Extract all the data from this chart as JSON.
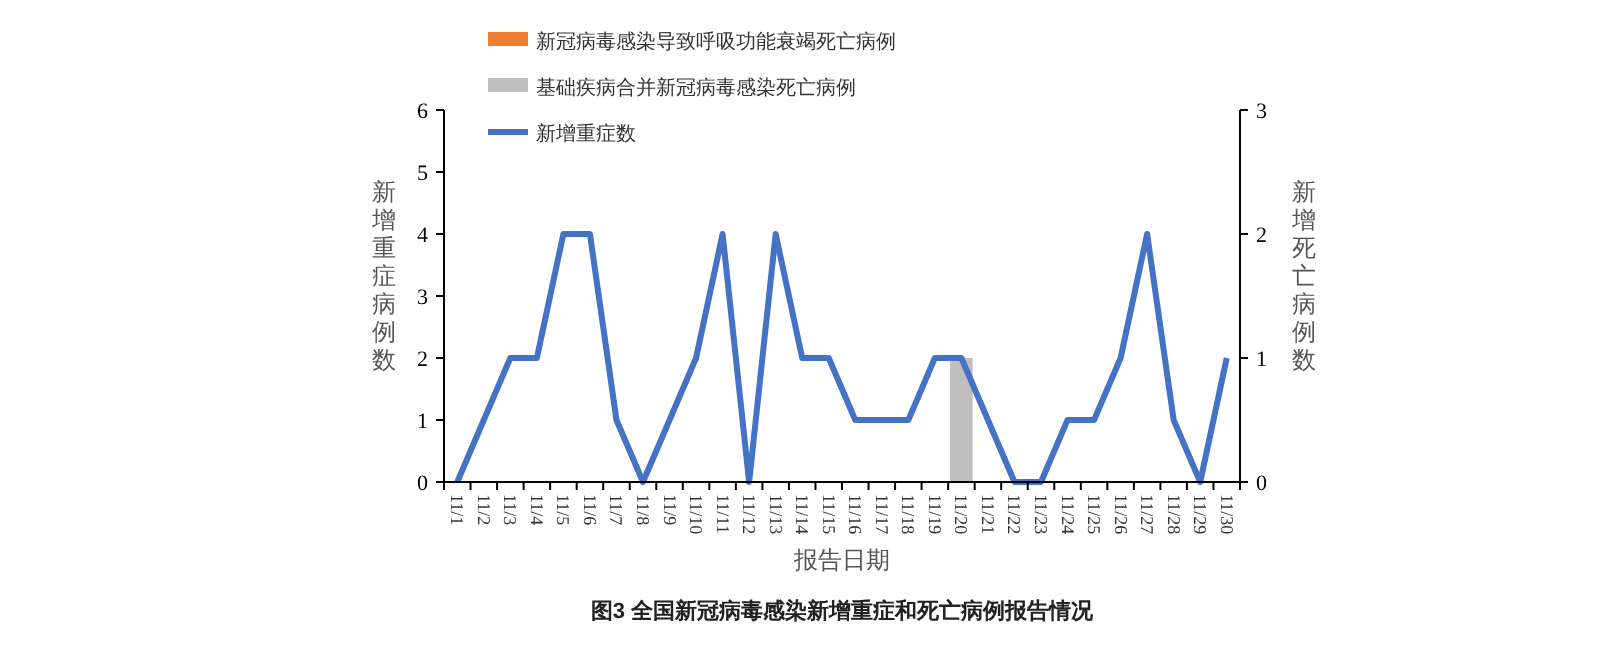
{
  "chart_data": {
    "type": "bar",
    "title": "图3 全国新冠病毒感染新增重症和死亡病例报告情况",
    "xlabel": "报告日期",
    "ylabel": "新增重症病例数",
    "y2label": "新增死亡病例数",
    "categories": [
      "11/1",
      "11/2",
      "11/3",
      "11/4",
      "11/5",
      "11/6",
      "11/7",
      "11/8",
      "11/9",
      "11/10",
      "11/11",
      "11/12",
      "11/13",
      "11/14",
      "11/15",
      "11/16",
      "11/17",
      "11/18",
      "11/19",
      "11/20",
      "11/21",
      "11/22",
      "11/23",
      "11/24",
      "11/25",
      "11/26",
      "11/27",
      "11/28",
      "11/29",
      "11/30"
    ],
    "series": [
      {
        "name": "新冠病毒感染导致呼吸功能衰竭死亡病例",
        "axis": "y2",
        "color": "#ed7d31",
        "values": [
          0,
          0,
          0,
          0,
          0,
          0,
          0,
          0,
          0,
          0,
          0,
          0,
          0,
          0,
          0,
          0,
          0,
          0,
          0,
          0,
          0,
          0,
          0,
          0,
          0,
          0,
          0,
          0,
          0,
          0
        ]
      },
      {
        "name": "基础疾病合并新冠病毒感染死亡病例",
        "axis": "y2",
        "color": "#bfbfbf",
        "values": [
          0,
          0,
          0,
          0,
          0,
          0,
          0,
          0,
          0,
          0,
          0,
          0,
          0,
          0,
          0,
          0,
          0,
          0,
          0,
          1,
          0,
          0,
          0,
          0,
          0,
          0,
          0,
          0,
          0,
          0
        ]
      },
      {
        "name": "新增重症数",
        "type": "line",
        "color": "#4472c4",
        "values": [
          0,
          1,
          2,
          2,
          4,
          4,
          1,
          0,
          1,
          2,
          4,
          0,
          4,
          2,
          2,
          1,
          1,
          1,
          2,
          2,
          1,
          0,
          0,
          1,
          1,
          2,
          4,
          1,
          0,
          2
        ]
      }
    ],
    "stacked": true,
    "ylim": [
      0,
      6
    ],
    "yticks": [
      0,
      1,
      2,
      3,
      4,
      5,
      6
    ],
    "y2lim": [
      0,
      3
    ],
    "y2ticks": [
      0,
      1,
      2,
      3
    ],
    "legend": "top left",
    "grid": false,
    "marker": "none",
    "line_style": "solid"
  }
}
